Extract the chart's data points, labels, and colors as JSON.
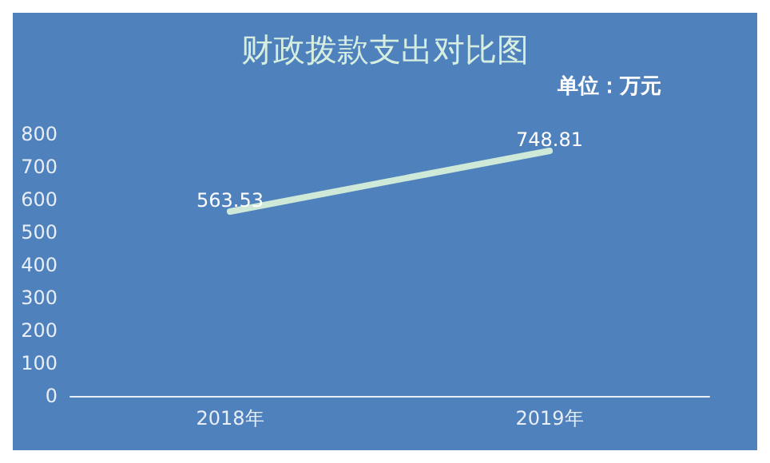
{
  "chart_data": {
    "type": "line",
    "title": "财政拨款支出对比图",
    "annotations": [
      "单位：万元"
    ],
    "categories": [
      "2018年",
      "2019年"
    ],
    "series": [
      {
        "color": "#cfe9d9",
        "values": [
          563.53,
          748.81
        ]
      }
    ],
    "data_labels": true,
    "marker": "none",
    "line_style": "solid",
    "grid": false,
    "ylim": [
      0,
      800
    ],
    "yticks": [
      0,
      100,
      200,
      300,
      400,
      500,
      600,
      700,
      800
    ]
  }
}
